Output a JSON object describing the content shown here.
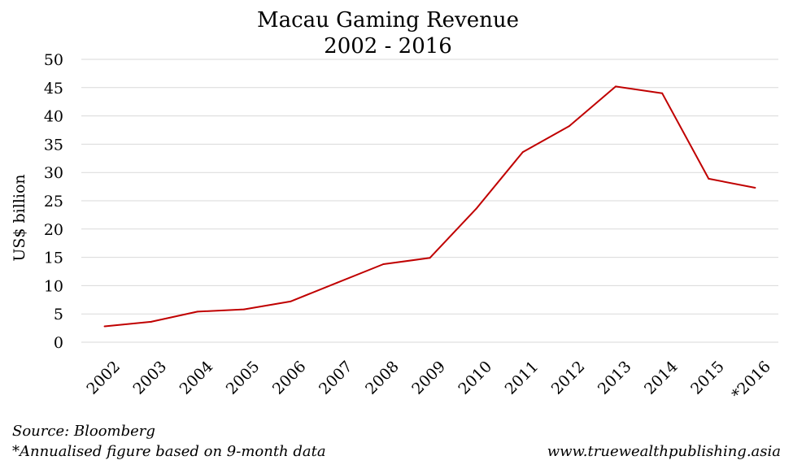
{
  "chart_data": {
    "type": "line",
    "title": [
      "Macau Gaming Revenue",
      "2002 - 2016"
    ],
    "xlabel": "",
    "ylabel": "US$ billion",
    "categories": [
      "2002",
      "2003",
      "2004",
      "2005",
      "2006",
      "2007",
      "2008",
      "2009",
      "2010",
      "2011",
      "2012",
      "2013",
      "2014",
      "2015",
      "*2016"
    ],
    "series": [
      {
        "name": "Macau Gaming Revenue",
        "color": "#c00000",
        "values": [
          2.8,
          3.6,
          5.4,
          5.8,
          7.2,
          10.5,
          13.8,
          14.9,
          23.6,
          33.6,
          38.2,
          45.2,
          44.0,
          28.9,
          27.3
        ]
      }
    ],
    "ylim": [
      0,
      50
    ],
    "yticks": [
      0,
      5,
      10,
      15,
      20,
      25,
      30,
      35,
      40,
      45,
      50
    ],
    "grid": true,
    "legend": "none"
  },
  "footer": {
    "source": "Source: Bloomberg",
    "note": "*Annualised figure based on 9-month data",
    "website": "www.truewealthpublishing.asia"
  }
}
